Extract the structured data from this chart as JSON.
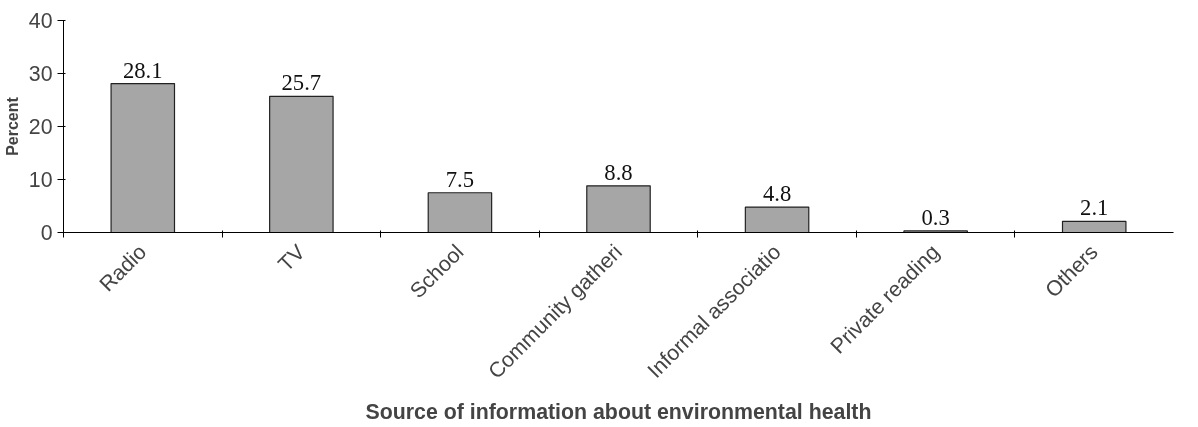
{
  "chart_data": {
    "type": "bar",
    "xlabel": "Source of information about environmental health",
    "ylabel": "Percent",
    "categories": [
      "Radio",
      "TV",
      "School",
      "Community gatheri",
      "Informal associatio",
      "Private reading",
      "Others"
    ],
    "values": [
      28.1,
      25.7,
      7.5,
      8.8,
      4.8,
      0.3,
      2.1
    ],
    "color": "#a6a6a6",
    "ylim": [
      0,
      40
    ],
    "yticks": [
      0,
      10,
      20,
      30,
      40
    ],
    "grid": false,
    "data_labels": true
  }
}
